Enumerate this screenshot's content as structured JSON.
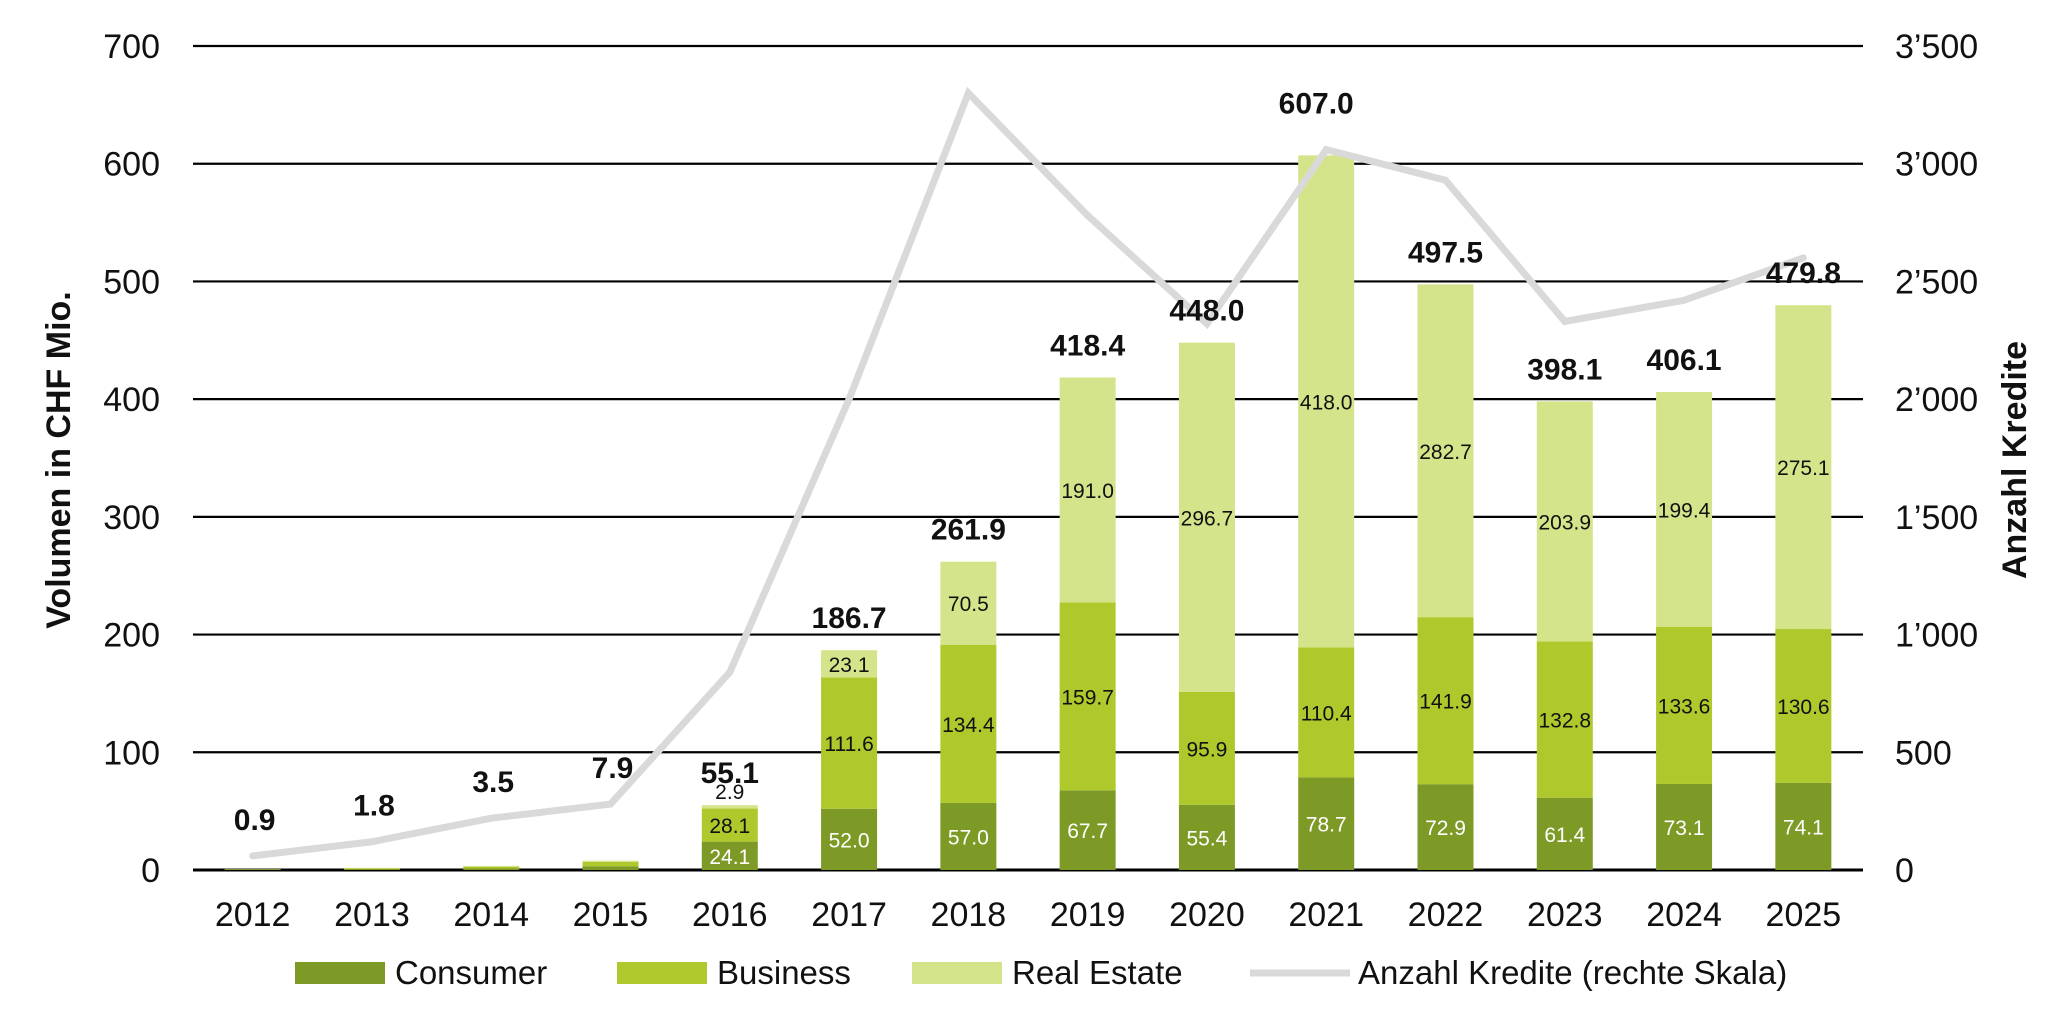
{
  "chart_data": {
    "type": "bar",
    "stacked": true,
    "categories": [
      "2012",
      "2013",
      "2014",
      "2015",
      "2016",
      "2017",
      "2018",
      "2019",
      "2020",
      "2021",
      "2022",
      "2023",
      "2024",
      "2025"
    ],
    "series": [
      {
        "name": "Consumer",
        "color": "#7e9a26",
        "values": [
          0.3,
          0.6,
          1.2,
          3.2,
          24.1,
          52.0,
          57.0,
          67.7,
          55.4,
          78.7,
          72.9,
          61.4,
          73.1,
          74.1
        ],
        "labels": [
          "",
          "",
          "",
          "",
          "24.1",
          "52.0",
          "57.0",
          "67.7",
          "55.4",
          "78.7",
          "72.9",
          "61.4",
          "73.1",
          "74.1"
        ]
      },
      {
        "name": "Business",
        "color": "#afc82c",
        "values": [
          0.4,
          0.8,
          1.6,
          3.7,
          28.1,
          111.6,
          134.4,
          159.7,
          95.9,
          110.4,
          141.9,
          132.8,
          133.6,
          130.6
        ],
        "labels": [
          "",
          "",
          "",
          "",
          "28.1",
          "111.6",
          "134.4",
          "159.7",
          "95.9",
          "110.4",
          "141.9",
          "132.8",
          "133.6",
          "130.6"
        ]
      },
      {
        "name": "Real Estate",
        "color": "#d4e48a",
        "values": [
          0.2,
          0.4,
          0.7,
          1.0,
          2.9,
          23.1,
          70.5,
          191.0,
          296.7,
          418.0,
          282.7,
          203.9,
          199.4,
          275.1
        ],
        "labels": [
          "",
          "",
          "",
          "",
          "2.9",
          "23.1",
          "70.5",
          "191.0",
          "296.7",
          "418.0",
          "282.7",
          "203.9",
          "199.4",
          "275.1"
        ]
      }
    ],
    "totals": [
      "0.9",
      "1.8",
      "3.5",
      "7.9",
      "55.1",
      "186.7",
      "261.9",
      "418.4",
      "448.0",
      "607.0",
      "497.5",
      "398.1",
      "406.1",
      "479.8"
    ],
    "line": {
      "name": "Anzahl Kredite (rechte Skala)",
      "color": "#d9d9d9",
      "values": [
        60,
        120,
        220,
        280,
        840,
        2000,
        3300,
        2780,
        2320,
        3060,
        2930,
        2330,
        2420,
        2600
      ]
    },
    "ylabel": "Volumen in CHF Mio.",
    "y2label": "Anzahl Kredite",
    "ylim": [
      0,
      700
    ],
    "y2lim": [
      0,
      3500
    ],
    "yticks": [
      "0",
      "100",
      "200",
      "300",
      "400",
      "500",
      "600",
      "700"
    ],
    "y2ticks": [
      "0",
      "500",
      "1’000",
      "1’500",
      "2’000",
      "2’500",
      "3’000",
      "3’500"
    ],
    "grid": true,
    "legend_position": "bottom"
  }
}
